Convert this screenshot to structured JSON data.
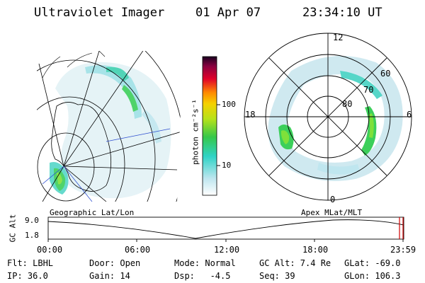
{
  "header": {
    "instrument": "Ultraviolet Imager",
    "date": "01 Apr 07",
    "time": "23:34:10 UT"
  },
  "colorbar": {
    "label": "photon cm⁻²s⁻¹",
    "ticks": [
      "100",
      "10"
    ]
  },
  "geo_panel": {
    "label": "Geographic Lat/Lon"
  },
  "polar_panel": {
    "label": "Apex MLat/MLT",
    "mlt_labels": {
      "top": "12",
      "left": "18",
      "right": "6",
      "bottom": "0"
    },
    "lat_labels": [
      "60",
      "70",
      "80"
    ]
  },
  "timeline": {
    "axis_title": "GC Alt",
    "y_ticks": [
      "9.0",
      "1.8"
    ],
    "x_ticks": [
      "00:00",
      "06:00",
      "12:00",
      "18:00",
      "23:59"
    ]
  },
  "status": {
    "filter": "Flt: LBHL",
    "ip": "IP: 36.0",
    "door": "Door: Open",
    "gain": "Gain: 14",
    "mode": "Mode: Normal",
    "dsp": "Dsp:   -4.5",
    "gc_alt": "GC Alt: 7.4 Re",
    "seq": "Seq: 39",
    "glat": "GLat: -69.0",
    "glon": "GLon: 106.3"
  },
  "colors": {
    "aurora_light": "#bfe6ef",
    "aurora_mid": "#56d6c8",
    "aurora_green": "#3ccf5a",
    "aurora_bright": "#7fe03a",
    "marker": "#d00000"
  }
}
